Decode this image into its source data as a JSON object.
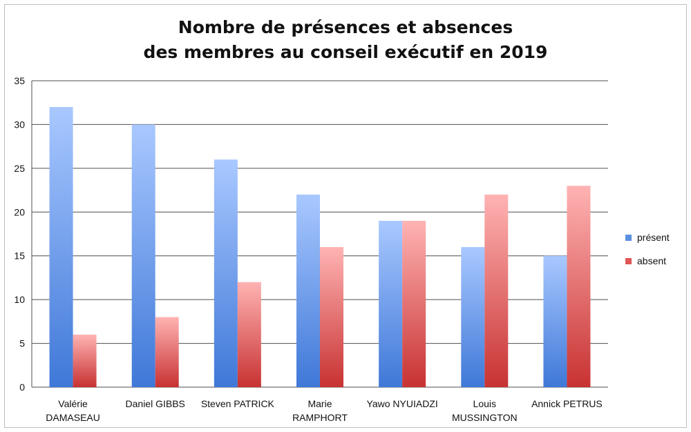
{
  "chart_data": {
    "type": "bar",
    "title": [
      "Nombre de présences et absences",
      "des membres au conseil exécutif en 2019"
    ],
    "categories": [
      [
        "Valérie",
        "DAMASEAU"
      ],
      [
        "Daniel GIBBS"
      ],
      [
        "Steven PATRICK"
      ],
      [
        "Marie",
        "RAMPHORT"
      ],
      [
        "Yawo NYUIADZI"
      ],
      [
        "Louis",
        "MUSSINGTON"
      ],
      [
        "Annick PETRUS"
      ]
    ],
    "series": [
      {
        "name": "présent",
        "values": [
          32,
          30,
          26,
          22,
          19,
          16,
          15
        ],
        "color": "#5b8fe0"
      },
      {
        "name": "absent",
        "values": [
          6,
          8,
          12,
          16,
          19,
          22,
          23
        ],
        "color": "#e05555"
      }
    ],
    "ylim": [
      0,
      35
    ],
    "yticks": [
      0,
      5,
      10,
      15,
      20,
      25,
      30,
      35
    ],
    "grid": true,
    "legend": "right"
  }
}
